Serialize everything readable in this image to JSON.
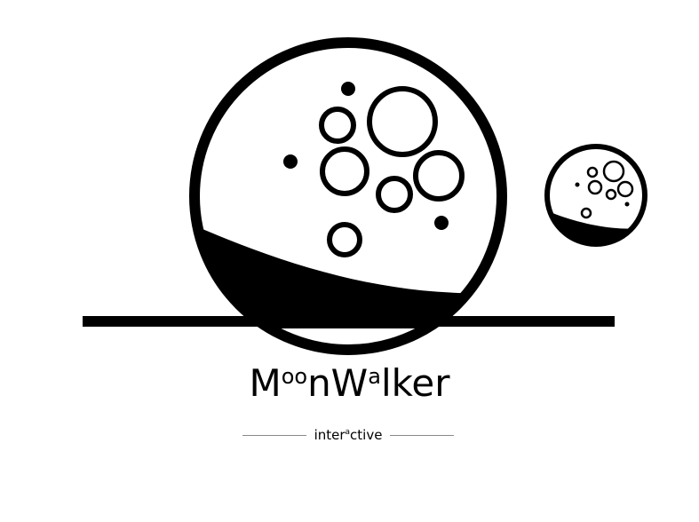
{
  "brand": {
    "word_parts": [
      {
        "text": "M",
        "raised": false
      },
      {
        "text": "oo",
        "raised": true
      },
      {
        "text": "nW",
        "raised": false
      },
      {
        "text": "a",
        "raised": true
      },
      {
        "text": "lker",
        "raised": false
      }
    ],
    "tagline_parts": [
      {
        "text": "inter",
        "raised": false
      },
      {
        "text": "a",
        "raised": true
      },
      {
        "text": "ctive",
        "raised": false
      }
    ]
  },
  "colors": {
    "ink": "#000000",
    "background": "#ffffff",
    "rule": "#8a8a8a"
  },
  "icons": {
    "large_moon": "moon-icon",
    "small_moon": "small-moon-icon",
    "ground": "ground-line"
  }
}
